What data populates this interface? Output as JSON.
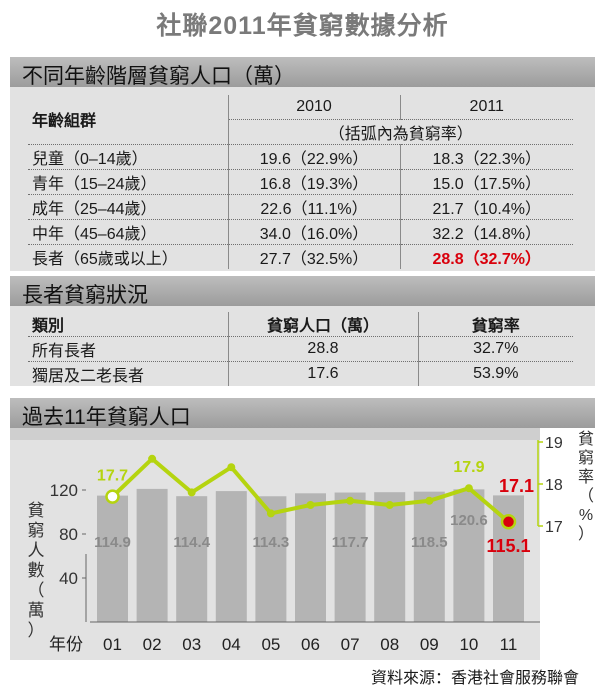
{
  "title": "社聯2011年貧窮數據分析",
  "section1": {
    "heading": "不同年齡階層貧窮人口（萬）",
    "header_group": "年齡組群",
    "years": [
      "2010",
      "2011"
    ],
    "note": "（括弧內為貧窮率）",
    "rows": [
      {
        "group": "兒童（0–14歲）",
        "y2010": "19.6（22.9%）",
        "y2011": "18.3（22.3%）"
      },
      {
        "group": "青年（15–24歲）",
        "y2010": "16.8（19.3%）",
        "y2011": "15.0（17.5%）"
      },
      {
        "group": "成年（25–44歲）",
        "y2010": "22.6（11.1%）",
        "y2011": "21.7（10.4%）"
      },
      {
        "group": "中年（45–64歲）",
        "y2010": "34.0（16.0%）",
        "y2011": "32.2（14.8%）"
      },
      {
        "group": "長者（65歲或以上）",
        "y2010": "27.7（32.5%）",
        "y2011": "28.8（32.7%）"
      }
    ]
  },
  "section2": {
    "heading": "長者貧窮狀況",
    "headers": [
      "類別",
      "貧窮人口（萬）",
      "貧窮率"
    ],
    "rows": [
      {
        "category": "所有長者",
        "population": "28.8",
        "rate": "32.7%"
      },
      {
        "category": "獨居及二老長者",
        "population": "17.6",
        "rate": "53.9%"
      }
    ]
  },
  "section3": {
    "heading": "過去11年貧窮人口"
  },
  "source": "資料來源：香港社會服務聯會",
  "colors": {
    "line": "#b5d40f",
    "highlight": "#d9000c",
    "bar": "#b4b4b4",
    "band": "#a8a8a8"
  },
  "chart_data": {
    "type": "bar",
    "xlabel": "年份",
    "categories": [
      "01",
      "02",
      "03",
      "04",
      "05",
      "06",
      "07",
      "08",
      "09",
      "10",
      "11"
    ],
    "series": [
      {
        "name": "貧窮人口（萬）",
        "type": "bar",
        "axis": "left",
        "ylabel": "貧窮人數（萬）",
        "values": [
          114.9,
          121.0,
          114.4,
          119.0,
          114.3,
          117.0,
          117.7,
          118.0,
          118.5,
          120.6,
          115.1
        ],
        "labels": [
          "114.9",
          "",
          "114.4",
          "",
          "114.3",
          "",
          "117.7",
          "",
          "118.5",
          "120.6",
          "115.1"
        ]
      },
      {
        "name": "貧窮率（%）",
        "type": "line",
        "axis": "right",
        "ylabel": "貧窮率（%）",
        "values": [
          17.7,
          18.6,
          17.8,
          18.4,
          17.3,
          17.5,
          17.6,
          17.5,
          17.6,
          17.9,
          17.1
        ],
        "labels": [
          "17.7",
          "",
          "",
          "",
          "",
          "",
          "",
          "",
          "",
          "17.9",
          "17.1"
        ]
      }
    ],
    "left_ticks": [
      40,
      80,
      120
    ],
    "right_ticks": [
      17,
      18,
      19
    ],
    "right_ylim": [
      17,
      19
    ]
  }
}
